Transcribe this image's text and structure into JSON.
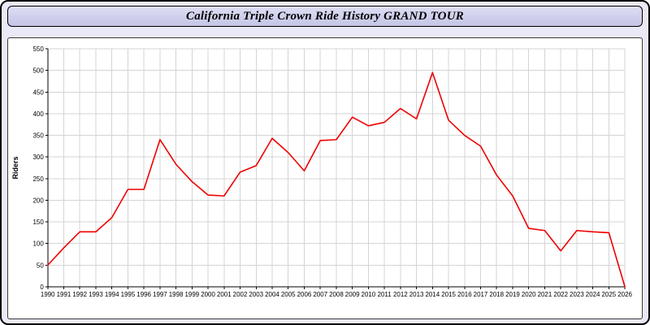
{
  "title": "California Triple Crown Ride History GRAND TOUR",
  "colors": {
    "page_bg": "#e9e9f7",
    "titlebar_bg": "#ccccec",
    "grid": "#d4d4d4",
    "axis": "#000000",
    "label": "#000000"
  },
  "chart_data": {
    "type": "line",
    "title": "California Triple Crown Ride History GRAND TOUR",
    "xlabel": "",
    "ylabel": "Riders",
    "ylim": [
      0,
      550
    ],
    "ytick_step": 50,
    "grid": true,
    "legend": "none",
    "line_color": "#ee0000",
    "x": [
      1990,
      1991,
      1992,
      1993,
      1994,
      1995,
      1996,
      1997,
      1998,
      1999,
      2000,
      2001,
      2002,
      2003,
      2004,
      2005,
      2006,
      2007,
      2008,
      2009,
      2010,
      2011,
      2012,
      2013,
      2014,
      2015,
      2016,
      2017,
      2018,
      2019,
      2020,
      2021,
      2022,
      2023,
      2024,
      2025,
      2026
    ],
    "series": [
      {
        "name": "Riders",
        "values": [
          50,
          90,
          127,
          127,
          160,
          225,
          225,
          340,
          283,
          243,
          212,
          210,
          265,
          280,
          343,
          310,
          268,
          338,
          340,
          392,
          372,
          380,
          412,
          388,
          495,
          385,
          350,
          325,
          258,
          210,
          135,
          130,
          83,
          130,
          127,
          125,
          0
        ]
      }
    ]
  }
}
